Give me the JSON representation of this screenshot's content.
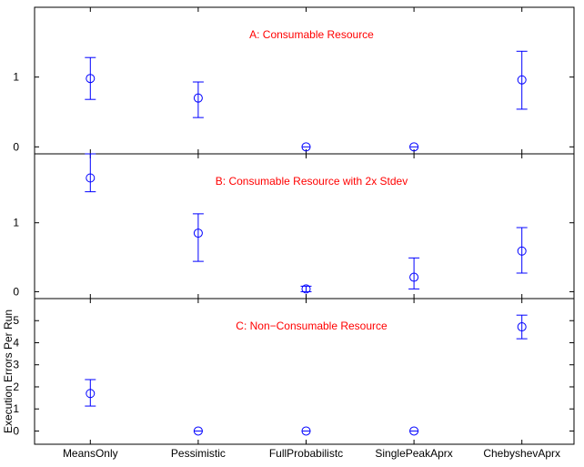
{
  "chart_data": {
    "type": "scatter",
    "categories": [
      "MeansOnly",
      "Pessimistic",
      "FullProbabilistc",
      "SinglePeakAprx",
      "ChebyshevAprx"
    ],
    "ylabel": "Execution Errors Per Run",
    "colors": {
      "marker": "#0000ff",
      "annotation": "#ff0000",
      "axes": "#000000"
    },
    "panels": [
      {
        "title": "A: Consumable Resource",
        "ylim": [
          -0.1,
          2.0
        ],
        "yticks": [
          0,
          1
        ],
        "series": [
          {
            "values": [
              0.98,
              0.7,
              0.0,
              0.0,
              0.96
            ],
            "lower": [
              0.68,
              0.42,
              0.0,
              0.0,
              0.54
            ],
            "upper": [
              1.28,
              0.93,
              0.0,
              0.0,
              1.37
            ]
          }
        ]
      },
      {
        "title": "B: Consumable Resource with 2x Stdev",
        "ylim": [
          -0.1,
          2.0
        ],
        "yticks": [
          0,
          1
        ],
        "series": [
          {
            "values": [
              1.65,
              0.85,
              0.04,
              0.21,
              0.59
            ],
            "lower": [
              1.45,
              0.44,
              0.0,
              0.04,
              0.27
            ],
            "upper": [
              2.0,
              1.13,
              0.08,
              0.49,
              0.93
            ]
          }
        ]
      },
      {
        "title": "C: Non−Consumable Resource",
        "ylim": [
          -0.6,
          6.0
        ],
        "yticks": [
          0,
          1,
          2,
          3,
          4,
          5
        ],
        "series": [
          {
            "values": [
              1.7,
              0.0,
              0.0,
              0.0,
              4.72
            ],
            "lower": [
              1.13,
              0.0,
              0.0,
              0.0,
              4.18
            ],
            "upper": [
              2.33,
              0.0,
              0.0,
              0.0,
              5.25
            ]
          }
        ]
      }
    ]
  }
}
